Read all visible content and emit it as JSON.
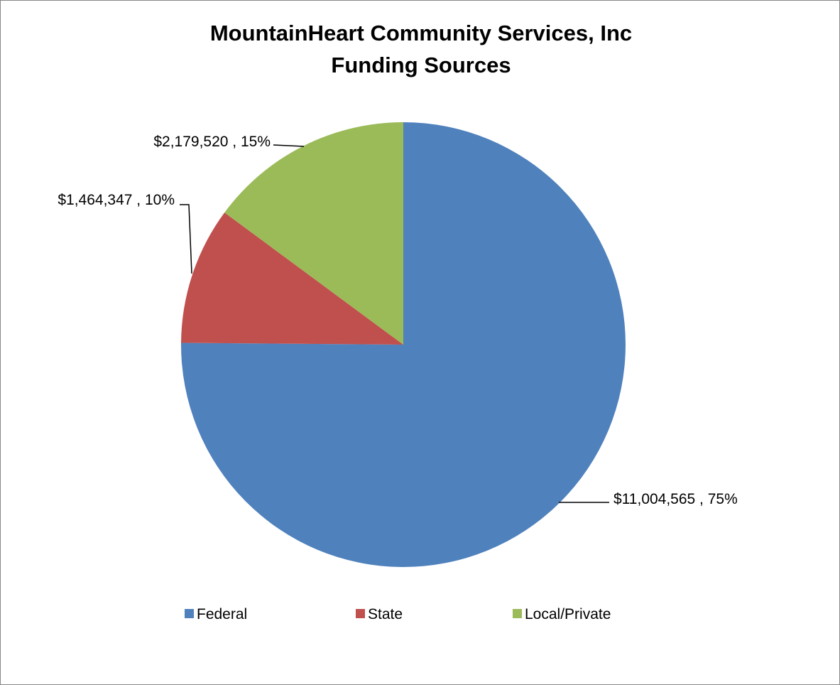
{
  "chart_data": {
    "type": "pie",
    "title_lines": [
      "MountainHeart  Community Services, Inc",
      "Funding Sources"
    ],
    "start_angle_deg": 0,
    "direction": "clockwise",
    "slices": [
      {
        "name": "Federal",
        "value": 11004565,
        "percent": 75,
        "label": "$11,004,565 , 75%",
        "color": "#4F81BD"
      },
      {
        "name": "State",
        "value": 1464347,
        "percent": 10,
        "label": "$1,464,347 , 10%",
        "color": "#C0504D"
      },
      {
        "name": "Local/Private",
        "value": 2179520,
        "percent": 15,
        "label": "$2,179,520 , 15%",
        "color": "#9BBB59"
      }
    ],
    "legend_position": "bottom"
  }
}
